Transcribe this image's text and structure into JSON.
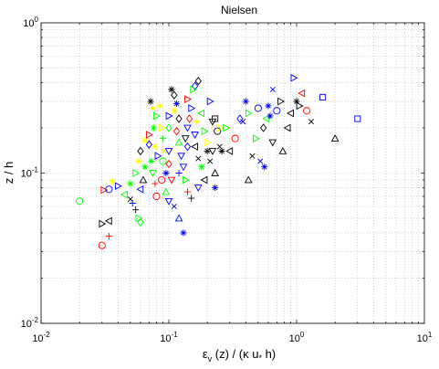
{
  "chart_data": {
    "type": "scatter",
    "title": "Nielsen",
    "xlabel_main": "ε",
    "xlabel_sub": "v",
    "xlabel_rest": "(z) / (κ u",
    "xlabel_star": "*",
    "xlabel_end": " h)",
    "ylabel": "z / h",
    "xscale": "log",
    "yscale": "log",
    "xlim": [
      0.01,
      10
    ],
    "ylim": [
      0.01,
      1
    ],
    "grid": true,
    "x_ticks": [
      {
        "value": 0.01,
        "base": "10",
        "exp": "-2"
      },
      {
        "value": 0.1,
        "base": "10",
        "exp": "-1"
      },
      {
        "value": 1,
        "base": "10",
        "exp": "0"
      },
      {
        "value": 10,
        "base": "10",
        "exp": "1"
      }
    ],
    "y_ticks": [
      {
        "value": 0.01,
        "base": "10",
        "exp": "-2"
      },
      {
        "value": 0.1,
        "base": "10",
        "exp": "-1"
      },
      {
        "value": 1,
        "base": "10",
        "exp": "0"
      }
    ],
    "colors": {
      "red": "#ff0000",
      "green": "#00ff00",
      "blue": "#0000ff",
      "black": "#000000",
      "yellow": "#ffff00",
      "gridline": "#b8b8b8"
    },
    "points": [
      {
        "x": 0.02,
        "y": 0.065,
        "m": "circle",
        "c": "green"
      },
      {
        "x": 0.03,
        "y": 0.033,
        "m": "circle",
        "c": "red"
      },
      {
        "x": 0.034,
        "y": 0.038,
        "m": "plus",
        "c": "red"
      },
      {
        "x": 0.03,
        "y": 0.046,
        "m": "tri-right",
        "c": "black"
      },
      {
        "x": 0.034,
        "y": 0.048,
        "m": "tri-left",
        "c": "black"
      },
      {
        "x": 0.031,
        "y": 0.077,
        "m": "tri-right",
        "c": "red"
      },
      {
        "x": 0.034,
        "y": 0.078,
        "m": "circle",
        "c": "blue"
      },
      {
        "x": 0.036,
        "y": 0.088,
        "m": "star",
        "c": "yellow"
      },
      {
        "x": 0.04,
        "y": 0.082,
        "m": "tri-right",
        "c": "blue"
      },
      {
        "x": 0.045,
        "y": 0.072,
        "m": "tri-left",
        "c": "green"
      },
      {
        "x": 0.05,
        "y": 0.067,
        "m": "cross",
        "c": "black"
      },
      {
        "x": 0.052,
        "y": 0.063,
        "m": "plus",
        "c": "blue"
      },
      {
        "x": 0.055,
        "y": 0.057,
        "m": "plus",
        "c": "black"
      },
      {
        "x": 0.058,
        "y": 0.05,
        "m": "tri-right",
        "c": "green"
      },
      {
        "x": 0.06,
        "y": 0.047,
        "m": "diamond",
        "c": "green"
      },
      {
        "x": 0.05,
        "y": 0.085,
        "m": "star",
        "c": "green"
      },
      {
        "x": 0.055,
        "y": 0.1,
        "m": "tri-right",
        "c": "green"
      },
      {
        "x": 0.06,
        "y": 0.078,
        "m": "tri-left",
        "c": "blue"
      },
      {
        "x": 0.063,
        "y": 0.09,
        "m": "tri-up",
        "c": "black"
      },
      {
        "x": 0.058,
        "y": 0.12,
        "m": "star",
        "c": "yellow"
      },
      {
        "x": 0.065,
        "y": 0.11,
        "m": "star",
        "c": "green"
      },
      {
        "x": 0.06,
        "y": 0.14,
        "m": "diamond",
        "c": "black"
      },
      {
        "x": 0.065,
        "y": 0.165,
        "m": "star",
        "c": "yellow"
      },
      {
        "x": 0.07,
        "y": 0.18,
        "m": "tri-right",
        "c": "red"
      },
      {
        "x": 0.07,
        "y": 0.155,
        "m": "diamond",
        "c": "blue"
      },
      {
        "x": 0.073,
        "y": 0.12,
        "m": "star",
        "c": "green"
      },
      {
        "x": 0.075,
        "y": 0.1,
        "m": "tri-down",
        "c": "green"
      },
      {
        "x": 0.078,
        "y": 0.085,
        "m": "plus",
        "c": "red"
      },
      {
        "x": 0.08,
        "y": 0.07,
        "m": "circle",
        "c": "red"
      },
      {
        "x": 0.082,
        "y": 0.13,
        "m": "tri-right",
        "c": "blue"
      },
      {
        "x": 0.078,
        "y": 0.15,
        "m": "star",
        "c": "yellow"
      },
      {
        "x": 0.076,
        "y": 0.2,
        "m": "star",
        "c": "green"
      },
      {
        "x": 0.08,
        "y": 0.24,
        "m": "tri-right",
        "c": "green"
      },
      {
        "x": 0.075,
        "y": 0.27,
        "m": "star",
        "c": "yellow"
      },
      {
        "x": 0.072,
        "y": 0.3,
        "m": "star",
        "c": "black"
      },
      {
        "x": 0.085,
        "y": 0.28,
        "m": "star",
        "c": "yellow"
      },
      {
        "x": 0.088,
        "y": 0.2,
        "m": "tri-right",
        "c": "yellow"
      },
      {
        "x": 0.09,
        "y": 0.17,
        "m": "plus",
        "c": "green"
      },
      {
        "x": 0.092,
        "y": 0.14,
        "m": "cross",
        "c": "yellow"
      },
      {
        "x": 0.09,
        "y": 0.12,
        "m": "circle",
        "c": "green"
      },
      {
        "x": 0.095,
        "y": 0.1,
        "m": "star",
        "c": "blue"
      },
      {
        "x": 0.088,
        "y": 0.09,
        "m": "circle",
        "c": "red"
      },
      {
        "x": 0.095,
        "y": 0.075,
        "m": "tri-up",
        "c": "green"
      },
      {
        "x": 0.1,
        "y": 0.065,
        "m": "tri-down",
        "c": "blue"
      },
      {
        "x": 0.11,
        "y": 0.06,
        "m": "cross",
        "c": "blue"
      },
      {
        "x": 0.12,
        "y": 0.05,
        "m": "tri-up",
        "c": "blue"
      },
      {
        "x": 0.13,
        "y": 0.04,
        "m": "star",
        "c": "blue"
      },
      {
        "x": 0.105,
        "y": 0.09,
        "m": "tri-down",
        "c": "red"
      },
      {
        "x": 0.1,
        "y": 0.115,
        "m": "diamond",
        "c": "red"
      },
      {
        "x": 0.1,
        "y": 0.14,
        "m": "tri-down",
        "c": "blue"
      },
      {
        "x": 0.1,
        "y": 0.2,
        "m": "diamond",
        "c": "green"
      },
      {
        "x": 0.1,
        "y": 0.24,
        "m": "tri-right",
        "c": "blue"
      },
      {
        "x": 0.105,
        "y": 0.36,
        "m": "star",
        "c": "black"
      },
      {
        "x": 0.11,
        "y": 0.33,
        "m": "diamond",
        "c": "black"
      },
      {
        "x": 0.115,
        "y": 0.29,
        "m": "star",
        "c": "blue"
      },
      {
        "x": 0.11,
        "y": 0.26,
        "m": "star",
        "c": "yellow"
      },
      {
        "x": 0.12,
        "y": 0.23,
        "m": "diamond",
        "c": "black"
      },
      {
        "x": 0.115,
        "y": 0.19,
        "m": "diamond",
        "c": "red"
      },
      {
        "x": 0.12,
        "y": 0.16,
        "m": "tri-up",
        "c": "green"
      },
      {
        "x": 0.125,
        "y": 0.13,
        "m": "tri-down",
        "c": "blue"
      },
      {
        "x": 0.13,
        "y": 0.11,
        "m": "tri-down",
        "c": "blue"
      },
      {
        "x": 0.12,
        "y": 0.1,
        "m": "plus",
        "c": "blue"
      },
      {
        "x": 0.135,
        "y": 0.09,
        "m": "tri-right",
        "c": "green"
      },
      {
        "x": 0.14,
        "y": 0.075,
        "m": "plus",
        "c": "red"
      },
      {
        "x": 0.15,
        "y": 0.068,
        "m": "plus",
        "c": "black"
      },
      {
        "x": 0.14,
        "y": 0.15,
        "m": "diamond",
        "c": "blue"
      },
      {
        "x": 0.135,
        "y": 0.17,
        "m": "tri-down",
        "c": "black"
      },
      {
        "x": 0.14,
        "y": 0.2,
        "m": "tri-down",
        "c": "blue"
      },
      {
        "x": 0.145,
        "y": 0.23,
        "m": "diamond",
        "c": "red"
      },
      {
        "x": 0.15,
        "y": 0.27,
        "m": "tri-right",
        "c": "blue"
      },
      {
        "x": 0.14,
        "y": 0.31,
        "m": "tri-right",
        "c": "red"
      },
      {
        "x": 0.16,
        "y": 0.38,
        "m": "diamond",
        "c": "blue"
      },
      {
        "x": 0.155,
        "y": 0.36,
        "m": "tri-right",
        "c": "green"
      },
      {
        "x": 0.17,
        "y": 0.41,
        "m": "diamond",
        "c": "black"
      },
      {
        "x": 0.165,
        "y": 0.22,
        "m": "star",
        "c": "yellow"
      },
      {
        "x": 0.16,
        "y": 0.18,
        "m": "tri-down",
        "c": "blue"
      },
      {
        "x": 0.16,
        "y": 0.15,
        "m": "tri-left",
        "c": "black"
      },
      {
        "x": 0.17,
        "y": 0.125,
        "m": "cross",
        "c": "black"
      },
      {
        "x": 0.18,
        "y": 0.11,
        "m": "star",
        "c": "green"
      },
      {
        "x": 0.19,
        "y": 0.09,
        "m": "tri-left",
        "c": "black"
      },
      {
        "x": 0.17,
        "y": 0.08,
        "m": "tri-down",
        "c": "blue"
      },
      {
        "x": 0.18,
        "y": 0.25,
        "m": "tri-left",
        "c": "green"
      },
      {
        "x": 0.19,
        "y": 0.19,
        "m": "tri-right",
        "c": "green"
      },
      {
        "x": 0.2,
        "y": 0.16,
        "m": "tri-right",
        "c": "yellow"
      },
      {
        "x": 0.2,
        "y": 0.14,
        "m": "star",
        "c": "black"
      },
      {
        "x": 0.21,
        "y": 0.3,
        "m": "tri-right",
        "c": "blue"
      },
      {
        "x": 0.22,
        "y": 0.22,
        "m": "tri-down",
        "c": "black"
      },
      {
        "x": 0.23,
        "y": 0.23,
        "m": "square",
        "c": "black"
      },
      {
        "x": 0.24,
        "y": 0.19,
        "m": "circle",
        "c": "black"
      },
      {
        "x": 0.22,
        "y": 0.14,
        "m": "tri-down",
        "c": "black"
      },
      {
        "x": 0.21,
        "y": 0.12,
        "m": "cross",
        "c": "black"
      },
      {
        "x": 0.23,
        "y": 0.1,
        "m": "tri-up",
        "c": "black"
      },
      {
        "x": 0.25,
        "y": 0.15,
        "m": "cross",
        "c": "black"
      },
      {
        "x": 0.26,
        "y": 0.14,
        "m": "star",
        "c": "black"
      },
      {
        "x": 0.25,
        "y": 0.2,
        "m": "tri-right",
        "c": "yellow"
      },
      {
        "x": 0.23,
        "y": 0.08,
        "m": "star",
        "c": "blue"
      },
      {
        "x": 0.28,
        "y": 0.2,
        "m": "tri-right",
        "c": "green"
      },
      {
        "x": 0.3,
        "y": 0.14,
        "m": "tri-left",
        "c": "black"
      },
      {
        "x": 0.33,
        "y": 0.17,
        "m": "circle",
        "c": "red"
      },
      {
        "x": 0.36,
        "y": 0.23,
        "m": "diamond",
        "c": "blue"
      },
      {
        "x": 0.38,
        "y": 0.22,
        "m": "cross",
        "c": "blue"
      },
      {
        "x": 0.4,
        "y": 0.3,
        "m": "star",
        "c": "blue"
      },
      {
        "x": 0.42,
        "y": 0.25,
        "m": "tri-right",
        "c": "green"
      },
      {
        "x": 0.42,
        "y": 0.09,
        "m": "tri-up",
        "c": "black"
      },
      {
        "x": 0.45,
        "y": 0.13,
        "m": "cross",
        "c": "black"
      },
      {
        "x": 0.48,
        "y": 0.17,
        "m": "tri-right",
        "c": "green"
      },
      {
        "x": 0.5,
        "y": 0.27,
        "m": "circle",
        "c": "blue"
      },
      {
        "x": 0.52,
        "y": 0.12,
        "m": "cross",
        "c": "blue"
      },
      {
        "x": 0.55,
        "y": 0.2,
        "m": "diamond",
        "c": "black"
      },
      {
        "x": 0.56,
        "y": 0.11,
        "m": "star",
        "c": "blue"
      },
      {
        "x": 0.58,
        "y": 0.23,
        "m": "tri-left",
        "c": "green"
      },
      {
        "x": 0.6,
        "y": 0.28,
        "m": "star",
        "c": "blue"
      },
      {
        "x": 0.62,
        "y": 0.24,
        "m": "star",
        "c": "blue"
      },
      {
        "x": 0.65,
        "y": 0.36,
        "m": "cross",
        "c": "blue"
      },
      {
        "x": 0.65,
        "y": 0.16,
        "m": "tri-down",
        "c": "black"
      },
      {
        "x": 0.7,
        "y": 0.26,
        "m": "circle",
        "c": "blue"
      },
      {
        "x": 0.75,
        "y": 0.3,
        "m": "tri-right",
        "c": "black"
      },
      {
        "x": 0.78,
        "y": 0.14,
        "m": "tri-up",
        "c": "black"
      },
      {
        "x": 0.85,
        "y": 0.2,
        "m": "tri-left",
        "c": "black"
      },
      {
        "x": 0.9,
        "y": 0.25,
        "m": "tri-left",
        "c": "black"
      },
      {
        "x": 0.95,
        "y": 0.43,
        "m": "tri-right",
        "c": "blue"
      },
      {
        "x": 1.0,
        "y": 0.3,
        "m": "star",
        "c": "black"
      },
      {
        "x": 1.05,
        "y": 0.28,
        "m": "tri-right",
        "c": "black"
      },
      {
        "x": 1.1,
        "y": 0.34,
        "m": "tri-left",
        "c": "red"
      },
      {
        "x": 1.2,
        "y": 0.26,
        "m": "circle",
        "c": "red"
      },
      {
        "x": 1.3,
        "y": 0.22,
        "m": "cross",
        "c": "black"
      },
      {
        "x": 1.6,
        "y": 0.32,
        "m": "square",
        "c": "blue"
      },
      {
        "x": 2.0,
        "y": 0.17,
        "m": "tri-up",
        "c": "black"
      },
      {
        "x": 3.0,
        "y": 0.23,
        "m": "square",
        "c": "blue"
      }
    ]
  }
}
